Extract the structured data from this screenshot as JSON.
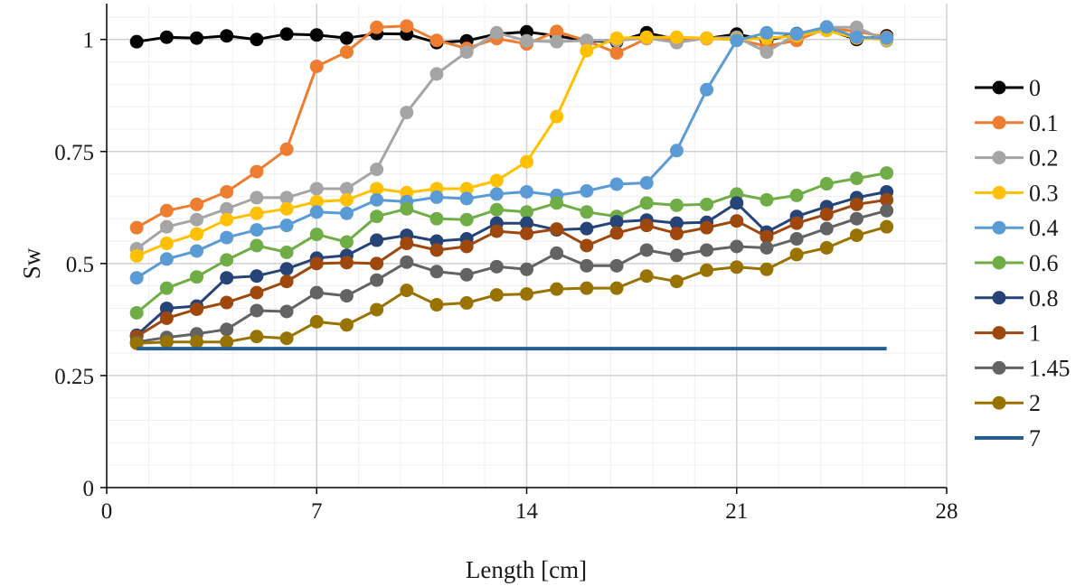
{
  "chart_data": {
    "type": "line",
    "title": "",
    "xlabel": "Length [cm]",
    "ylabel": "Sw",
    "xlim": [
      0,
      28
    ],
    "ylim": [
      0,
      1.08
    ],
    "x_ticks": [
      0,
      7,
      14,
      21,
      28
    ],
    "x_tick_labels": [
      "0",
      "7",
      "14",
      "21",
      "28"
    ],
    "y_ticks": [
      0,
      0.25,
      0.5,
      0.75,
      1
    ],
    "y_tick_labels": [
      "0",
      "0.25",
      "0.5",
      "0.75",
      "1"
    ],
    "grid": "major and minor gridlines on both axes",
    "legend_position": "right",
    "x": [
      1,
      2,
      3,
      4,
      5,
      6,
      7,
      8,
      9,
      10,
      11,
      12,
      13,
      14,
      15,
      16,
      17,
      18,
      19,
      20,
      21,
      22,
      23,
      24,
      25,
      26
    ],
    "series": [
      {
        "name": "0",
        "color": "#000000",
        "markers": true,
        "values": [
          0.995,
          1.005,
          1.003,
          1.008,
          1.0,
          1.012,
          1.01,
          1.003,
          1.013,
          1.012,
          0.993,
          0.997,
          1.012,
          1.017,
          1.008,
          0.997,
          0.995,
          1.015,
          1.0,
          1.002,
          1.012,
          0.998,
          1.013,
          1.022,
          1.0,
          1.008
        ]
      },
      {
        "name": "0.1",
        "color": "#ed7d31",
        "markers": true,
        "values": [
          0.58,
          0.618,
          0.632,
          0.66,
          0.705,
          0.755,
          0.94,
          0.972,
          1.027,
          1.03,
          0.998,
          0.98,
          1.002,
          0.99,
          1.018,
          0.997,
          0.97,
          1.002,
          1.0,
          1.002,
          1.0,
          0.985,
          0.998,
          1.025,
          1.018,
          1.005
        ]
      },
      {
        "name": "0.2",
        "color": "#a5a5a5",
        "markers": true,
        "values": [
          0.533,
          0.582,
          0.598,
          0.622,
          0.647,
          0.647,
          0.667,
          0.667,
          0.71,
          0.837,
          0.923,
          0.972,
          1.015,
          0.997,
          0.995,
          0.998,
          0.998,
          1.003,
          0.993,
          1.003,
          1.005,
          0.972,
          1.012,
          1.027,
          1.027,
          0.997
        ]
      },
      {
        "name": "0.3",
        "color": "#ffc000",
        "markers": true,
        "values": [
          0.517,
          0.545,
          0.566,
          0.598,
          0.612,
          0.622,
          0.638,
          0.642,
          0.667,
          0.658,
          0.667,
          0.667,
          0.685,
          0.727,
          0.828,
          0.975,
          1.003,
          1.005,
          1.005,
          1.003,
          1.0,
          1.003,
          1.008,
          1.02,
          1.003,
          1.0
        ]
      },
      {
        "name": "0.4",
        "color": "#5b9bd5",
        "markers": true,
        "values": [
          0.468,
          0.51,
          0.528,
          0.558,
          0.575,
          0.585,
          0.615,
          0.612,
          0.642,
          0.638,
          0.648,
          0.645,
          0.655,
          0.66,
          0.652,
          0.662,
          0.677,
          0.68,
          0.752,
          0.888,
          0.998,
          1.015,
          1.012,
          1.028,
          1.005,
          1.003
        ]
      },
      {
        "name": "0.6",
        "color": "#70ad47",
        "markers": true,
        "values": [
          0.39,
          0.445,
          0.47,
          0.508,
          0.54,
          0.525,
          0.565,
          0.548,
          0.605,
          0.622,
          0.6,
          0.598,
          0.62,
          0.615,
          0.635,
          0.615,
          0.605,
          0.635,
          0.63,
          0.632,
          0.655,
          0.642,
          0.652,
          0.678,
          0.69,
          0.702
        ]
      },
      {
        "name": "0.8",
        "color": "#264478",
        "markers": true,
        "values": [
          0.34,
          0.4,
          0.405,
          0.468,
          0.472,
          0.488,
          0.512,
          0.518,
          0.552,
          0.563,
          0.55,
          0.555,
          0.59,
          0.59,
          0.575,
          0.578,
          0.593,
          0.597,
          0.59,
          0.592,
          0.635,
          0.57,
          0.605,
          0.627,
          0.647,
          0.66
        ]
      },
      {
        "name": "1",
        "color": "#9e480e",
        "markers": true,
        "values": [
          0.337,
          0.378,
          0.398,
          0.413,
          0.435,
          0.46,
          0.5,
          0.502,
          0.5,
          0.545,
          0.53,
          0.538,
          0.572,
          0.567,
          0.577,
          0.54,
          0.568,
          0.585,
          0.567,
          0.58,
          0.595,
          0.56,
          0.59,
          0.61,
          0.632,
          0.642
        ]
      },
      {
        "name": "1.45",
        "color": "#636363",
        "markers": true,
        "values": [
          0.325,
          0.335,
          0.343,
          0.353,
          0.395,
          0.393,
          0.435,
          0.428,
          0.463,
          0.503,
          0.482,
          0.475,
          0.493,
          0.487,
          0.523,
          0.495,
          0.495,
          0.53,
          0.518,
          0.53,
          0.538,
          0.535,
          0.555,
          0.578,
          0.6,
          0.618
        ]
      },
      {
        "name": "2",
        "color": "#997300",
        "markers": true,
        "values": [
          0.322,
          0.325,
          0.325,
          0.325,
          0.337,
          0.333,
          0.37,
          0.363,
          0.397,
          0.44,
          0.408,
          0.412,
          0.43,
          0.432,
          0.443,
          0.445,
          0.445,
          0.472,
          0.46,
          0.485,
          0.492,
          0.487,
          0.52,
          0.535,
          0.563,
          0.582
        ]
      },
      {
        "name": "7",
        "color": "#255e91",
        "markers": false,
        "values": [
          0.31,
          0.31,
          0.31,
          0.31,
          0.31,
          0.31,
          0.31,
          0.31,
          0.31,
          0.31,
          0.31,
          0.31,
          0.31,
          0.31,
          0.31,
          0.31,
          0.31,
          0.31,
          0.31,
          0.31,
          0.31,
          0.31,
          0.31,
          0.31,
          0.31,
          0.31
        ]
      }
    ]
  }
}
